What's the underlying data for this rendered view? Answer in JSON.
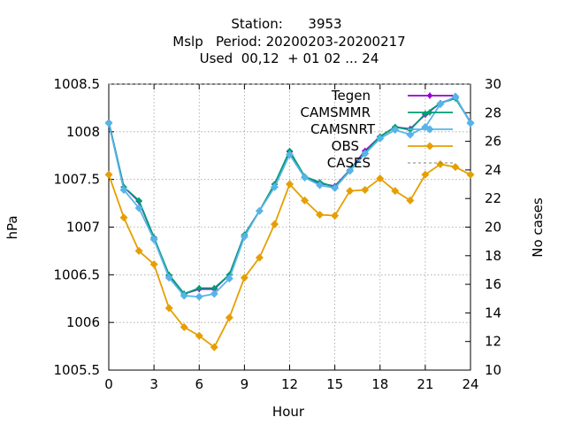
{
  "chart_data": {
    "type": "line",
    "title_lines": [
      "Station:      3953",
      "Mslp   Period: 20200203-20200217",
      "Used  00,12  + 01 02 ... 24"
    ],
    "xlabel": "Hour",
    "ylabel": "hPa",
    "y2label": "No cases",
    "xlim": [
      0,
      24
    ],
    "ylim": [
      1005.5,
      1008.5
    ],
    "y2lim": [
      10,
      30
    ],
    "xticks": [
      "0",
      "3",
      "6",
      "9",
      "12",
      "15",
      "18",
      "21",
      "24"
    ],
    "yticks": [
      "1005.5",
      "1006",
      "1006.5",
      "1007",
      "1007.5",
      "1008",
      "1008.5"
    ],
    "y2ticks": [
      "10",
      "12",
      "14",
      "16",
      "18",
      "20",
      "22",
      "24",
      "26",
      "28",
      "30"
    ],
    "grid": true,
    "legend_position": "top-right",
    "x": [
      0,
      1,
      2,
      3,
      4,
      5,
      6,
      7,
      8,
      9,
      10,
      11,
      12,
      13,
      14,
      15,
      16,
      17,
      18,
      19,
      20,
      21,
      22,
      23,
      24
    ],
    "series": [
      {
        "name": "Tegen",
        "color": "#9400d3",
        "marker": "plus",
        "axis": "y",
        "values": [
          1008.1,
          1007.42,
          1007.27,
          1006.89,
          1006.49,
          1006.3,
          1006.35,
          1006.35,
          1006.5,
          1006.92,
          1007.17,
          1007.45,
          1007.79,
          1007.53,
          1007.46,
          1007.43,
          1007.6,
          1007.8,
          1007.95,
          1008.05,
          1008.03,
          1008.18,
          1008.3,
          1008.36,
          1008.1
        ]
      },
      {
        "name": "CAMSMMR",
        "color": "#009e73",
        "marker": "plus",
        "axis": "y",
        "values": [
          1008.1,
          1007.42,
          1007.28,
          1006.89,
          1006.5,
          1006.3,
          1006.36,
          1006.36,
          1006.5,
          1006.92,
          1007.17,
          1007.45,
          1007.8,
          1007.53,
          1007.47,
          1007.42,
          1007.6,
          1007.78,
          1007.95,
          1008.05,
          1008.02,
          1008.19,
          1008.3,
          1008.35,
          1008.1
        ]
      },
      {
        "name": "CAMSNRT",
        "color": "#56b4e9",
        "marker": "diamond",
        "axis": "y",
        "values": [
          1008.09,
          1007.39,
          1007.2,
          1006.87,
          1006.47,
          1006.28,
          1006.27,
          1006.3,
          1006.46,
          1006.9,
          1007.17,
          1007.42,
          1007.76,
          1007.52,
          1007.44,
          1007.41,
          1007.59,
          1007.77,
          1007.93,
          1008.02,
          1007.97,
          1008.05,
          1008.29,
          1008.37,
          1008.09
        ]
      },
      {
        "name": "OBS",
        "color": "#e69f00",
        "marker": "diamond",
        "axis": "y",
        "values": [
          1007.55,
          1007.1,
          1006.75,
          1006.61,
          1006.15,
          1005.95,
          1005.86,
          1005.74,
          1006.05,
          1006.47,
          1006.68,
          1007.03,
          1007.45,
          1007.28,
          1007.13,
          1007.12,
          1007.38,
          1007.39,
          1007.51,
          1007.38,
          1007.28,
          1007.55,
          1007.66,
          1007.63,
          1007.55
        ]
      },
      {
        "name": "CASES",
        "color": "#808080",
        "marker": "none",
        "dashed": true,
        "axis": "y2",
        "values": [
          30,
          30,
          30,
          30,
          30,
          30,
          30,
          30,
          30,
          30,
          30,
          30,
          30,
          30,
          30,
          30,
          30,
          30,
          30,
          30,
          30,
          30,
          30,
          30,
          30
        ]
      }
    ]
  }
}
